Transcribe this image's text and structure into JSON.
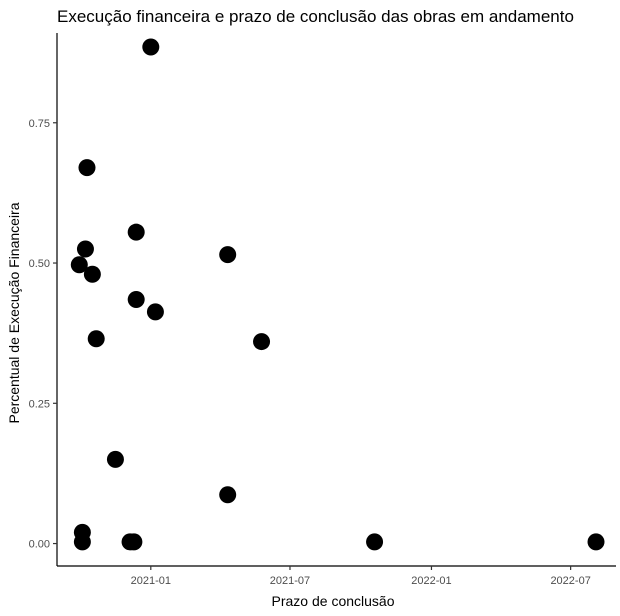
{
  "chart_data": {
    "type": "scatter",
    "title": "Execução financeira e prazo de conclusão das obras em andamento",
    "xlabel": "Prazo de conclusão",
    "ylabel": "Percentual de Execução Financeira",
    "x_axis_type": "date",
    "xlim": [
      "2020-09-01",
      "2022-08-29"
    ],
    "ylim": [
      -0.04,
      0.91
    ],
    "x_ticks": [
      {
        "value": "2021-01-01",
        "label": "2021-01"
      },
      {
        "value": "2021-07-01",
        "label": "2021-07"
      },
      {
        "value": "2022-01-01",
        "label": "2022-01"
      },
      {
        "value": "2022-07-01",
        "label": "2022-07"
      }
    ],
    "y_ticks": [
      {
        "value": 0.0,
        "label": "0.00"
      },
      {
        "value": 0.25,
        "label": "0.25"
      },
      {
        "value": 0.5,
        "label": "0.50"
      },
      {
        "value": 0.75,
        "label": "0.75"
      }
    ],
    "grid": false,
    "legend": "none",
    "point_color": "#000000",
    "points": [
      {
        "x": "2021-01-01",
        "y": 0.885
      },
      {
        "x": "2020-10-10",
        "y": 0.67
      },
      {
        "x": "2020-10-08",
        "y": 0.525
      },
      {
        "x": "2020-09-30",
        "y": 0.497
      },
      {
        "x": "2020-10-17",
        "y": 0.48
      },
      {
        "x": "2020-10-22",
        "y": 0.365
      },
      {
        "x": "2020-12-13",
        "y": 0.555
      },
      {
        "x": "2020-12-13",
        "y": 0.435
      },
      {
        "x": "2021-01-07",
        "y": 0.413
      },
      {
        "x": "2021-04-11",
        "y": 0.515
      },
      {
        "x": "2021-05-25",
        "y": 0.36
      },
      {
        "x": "2020-11-16",
        "y": 0.15
      },
      {
        "x": "2021-04-11",
        "y": 0.087
      },
      {
        "x": "2020-10-04",
        "y": 0.02
      },
      {
        "x": "2020-10-04",
        "y": 0.003
      },
      {
        "x": "2020-12-05",
        "y": 0.003
      },
      {
        "x": "2020-12-10",
        "y": 0.003
      },
      {
        "x": "2021-10-19",
        "y": 0.003
      },
      {
        "x": "2022-08-03",
        "y": 0.003
      }
    ]
  }
}
